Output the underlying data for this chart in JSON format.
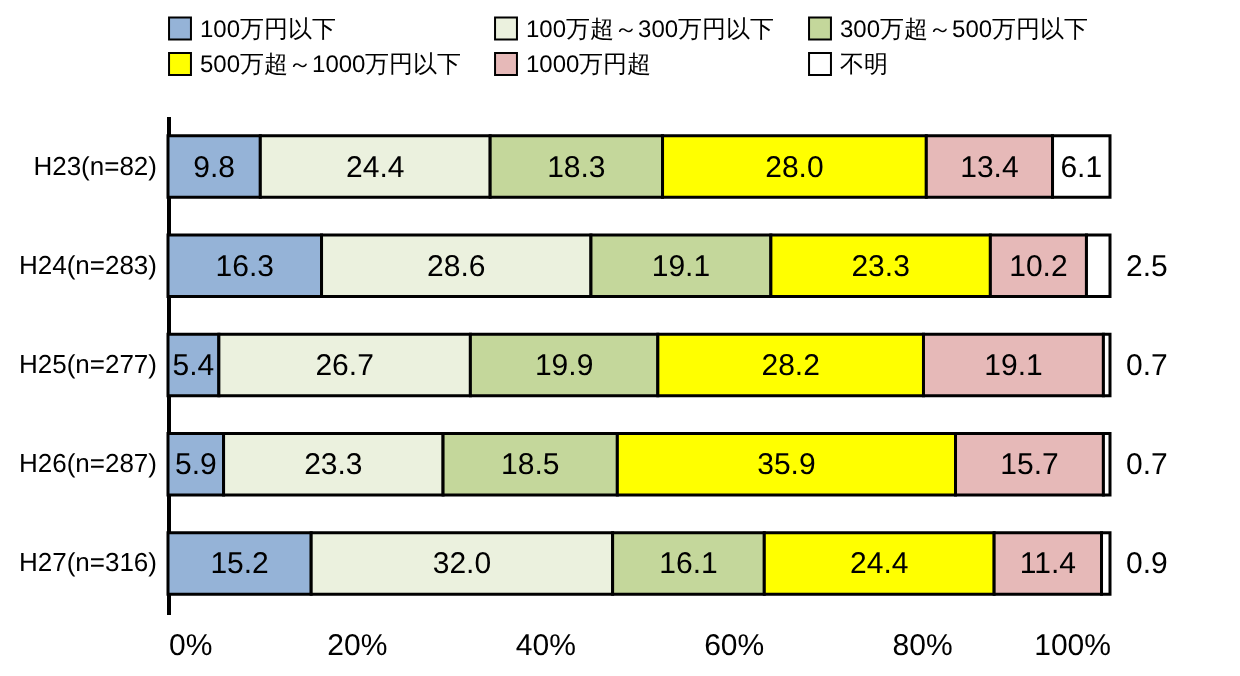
{
  "chart_data": {
    "type": "bar",
    "orientation": "horizontal",
    "stacked": true,
    "legend": "top",
    "categories": [
      "H23(n=82)",
      "H24(n=283)",
      "H25(n=277)",
      "H26(n=287)",
      "H27(n=316)"
    ],
    "xlim": [
      0,
      100
    ],
    "xticks": [
      {
        "value": 0,
        "label": "0%"
      },
      {
        "value": 20,
        "label": "20%"
      },
      {
        "value": 40,
        "label": "40%"
      },
      {
        "value": 60,
        "label": "60%"
      },
      {
        "value": 80,
        "label": "80%"
      },
      {
        "value": 100,
        "label": "100%"
      }
    ],
    "series": [
      {
        "name": "100万円以下",
        "color": "#95b3d7",
        "values": [
          9.8,
          16.3,
          5.4,
          5.9,
          15.2
        ],
        "value_labels": [
          "9.8",
          "16.3",
          "5.4",
          "5.9",
          "15.2"
        ]
      },
      {
        "name": "100万超～300万円以下",
        "color": "#ebf1de",
        "values": [
          24.4,
          28.6,
          26.7,
          23.3,
          32.0
        ],
        "value_labels": [
          "24.4",
          "28.6",
          "26.7",
          "23.3",
          "32.0"
        ]
      },
      {
        "name": "300万超～500万円以下",
        "color": "#c4d79b",
        "values": [
          18.3,
          19.1,
          19.9,
          18.5,
          16.1
        ],
        "value_labels": [
          "18.3",
          "19.1",
          "19.9",
          "18.5",
          "16.1"
        ]
      },
      {
        "name": "500万超～1000万円以下",
        "color": "#ffff00",
        "values": [
          28.0,
          23.3,
          28.2,
          35.9,
          24.4
        ],
        "value_labels": [
          "28.0",
          "23.3",
          "28.2",
          "35.9",
          "24.4"
        ]
      },
      {
        "name": "1000万円超",
        "color": "#e6b9b8",
        "values": [
          13.4,
          10.2,
          19.1,
          15.7,
          11.4
        ],
        "value_labels": [
          "13.4",
          "10.2",
          "19.1",
          "15.7",
          "11.4"
        ]
      },
      {
        "name": "不明",
        "color": "#ffffff",
        "values": [
          6.1,
          2.5,
          0.7,
          0.7,
          0.9
        ],
        "value_labels": [
          "6.1",
          "2.5",
          "0.7",
          "0.7",
          "0.9"
        ]
      }
    ]
  }
}
